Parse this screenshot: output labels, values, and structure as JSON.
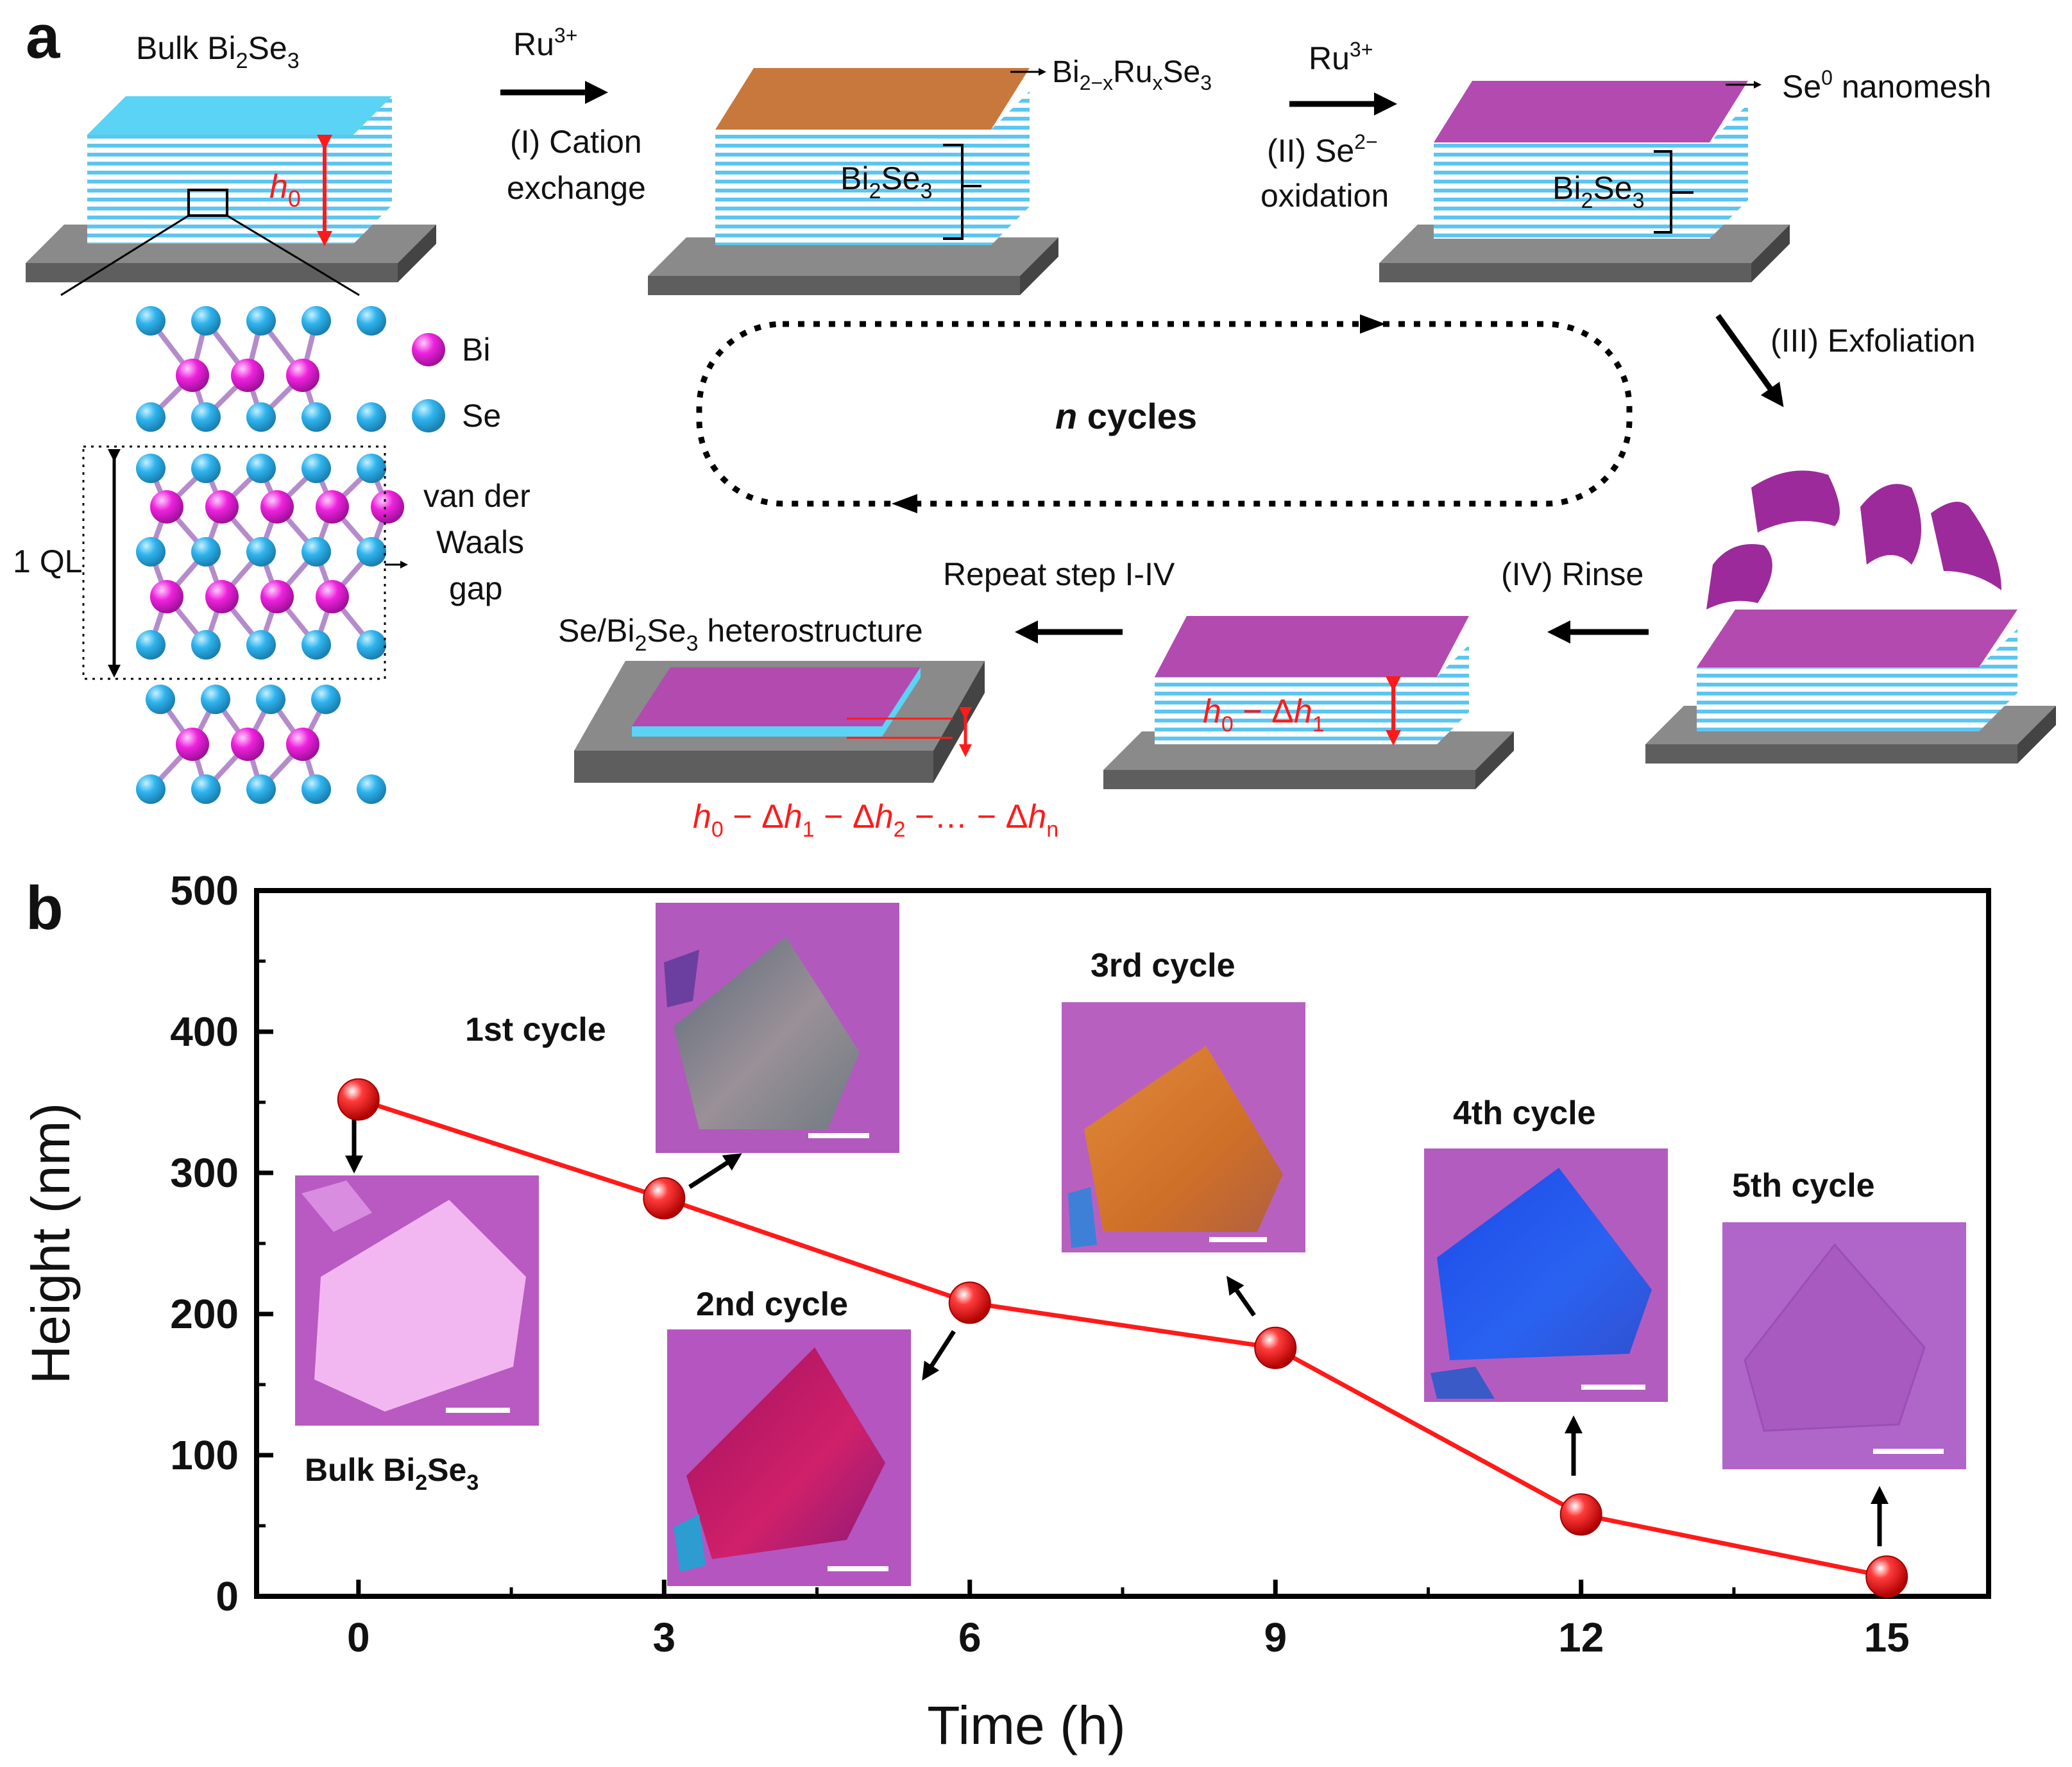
{
  "panel_a": {
    "label": "a",
    "bulk_title": {
      "main": "Bulk Bi",
      "sub1": "2",
      "mid": "Se",
      "sub2": "3"
    },
    "h0": {
      "main": "h",
      "sub": "0"
    },
    "step1": {
      "reagent": "Ru",
      "reagent_sup": "3+",
      "line1": "(I) Cation",
      "line2": "exchange"
    },
    "step1_product": {
      "p1": "Bi",
      "p2": "2−x",
      "p3": "Ru",
      "p4": "x",
      "p5": "Se",
      "p6": "3"
    },
    "step2": {
      "reagent": "Ru",
      "reagent_sup": "3+",
      "line1a": "(II) Se",
      "line1sup": "2−",
      "line2": "oxidation"
    },
    "step2_product": {
      "main": "Se",
      "sup": "0",
      "rest": " nanomesh"
    },
    "bracket_label": {
      "main": "Bi",
      "sub1": "2",
      "mid": "Se",
      "sub2": "3"
    },
    "step3": "(III) Exfoliation",
    "cycles": {
      "n": "n",
      "rest": " cycles"
    },
    "step4": "(IV) Rinse",
    "repeat": "Repeat step I-IV",
    "hetero": {
      "p1": "Se/Bi",
      "p2": "2",
      "p3": "Se",
      "p4": "3",
      "p5": " heterostructure"
    },
    "h_after1": {
      "h": "h",
      "s0": "0",
      "mid": " − Δ",
      "h1": "h",
      "s1": "1"
    },
    "h_final": {
      "h": "h",
      "s0": "0",
      "m1": " − Δ",
      "h1": "h",
      "s1": "1",
      "m2": " − Δ",
      "h2": "h",
      "s2": "2",
      "m3": " −… − Δ",
      "hn": "h",
      "sn": "n"
    },
    "legend": {
      "bi": "Bi",
      "se": "Se"
    },
    "ql": "1 QL",
    "vdw": [
      "van der",
      "Waals",
      "gap"
    ]
  },
  "panel_b": {
    "label": "b",
    "insets": {
      "bulk": {
        "main": "Bulk Bi",
        "sub1": "2",
        "mid": "Se",
        "sub2": "3"
      },
      "c1": "1st cycle",
      "c2": "2nd cycle",
      "c3": "3rd cycle",
      "c4": "4th cycle",
      "c5": "5th cycle"
    }
  },
  "colors": {
    "bi_atom": "#ee22dd",
    "se_atom": "#2fb4ee",
    "layer_blue": "#5cc6f0",
    "top_blue": "#5bd3f5",
    "top_orange": "#c8783c",
    "top_purple": "#b34ab0",
    "substrate": "#808080",
    "red": "#ff1a1a"
  },
  "chart_data": {
    "type": "line",
    "x": [
      0,
      3,
      6,
      9,
      12,
      15
    ],
    "y": [
      352,
      282,
      208,
      176,
      58,
      14
    ],
    "xlabel": "Time (h)",
    "ylabel": "Height (nm)",
    "xlim": [
      -1,
      16
    ],
    "ylim": [
      0,
      500
    ],
    "xticks": [
      0,
      3,
      6,
      9,
      12,
      15
    ],
    "yticks": [
      0,
      100,
      200,
      300,
      400,
      500
    ],
    "grid": false
  }
}
